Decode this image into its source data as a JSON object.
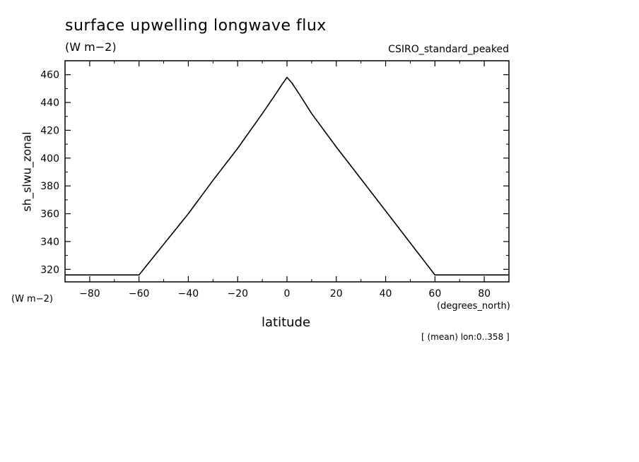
{
  "chart_data": {
    "type": "line",
    "title": "surface upwelling longwave flux",
    "units": "(W m−2)",
    "model": "CSIRO_standard_peaked",
    "ylabel": "sh_slwu_zonal",
    "yunits": "(W m−2)",
    "xlabel": "latitude",
    "xunits": "(degrees_north)",
    "note": "[ (mean) lon:0..358 ]",
    "xlim": [
      -90,
      90
    ],
    "ylim": [
      311,
      470
    ],
    "xticks": [
      -80,
      -60,
      -40,
      -20,
      0,
      20,
      40,
      60,
      80
    ],
    "yticks": [
      320,
      340,
      360,
      380,
      400,
      420,
      440,
      460
    ],
    "grid": false,
    "series": [
      {
        "x": [
          -90,
          -60,
          -50,
          -40,
          -30,
          -20,
          -10,
          -5,
          -2,
          0,
          2,
          5,
          10,
          20,
          30,
          40,
          50,
          60,
          90
        ],
        "y": [
          316,
          316,
          338,
          360,
          384,
          407,
          432,
          445,
          453,
          458,
          454,
          446,
          432,
          408,
          385,
          362,
          339,
          316,
          316
        ]
      }
    ]
  }
}
